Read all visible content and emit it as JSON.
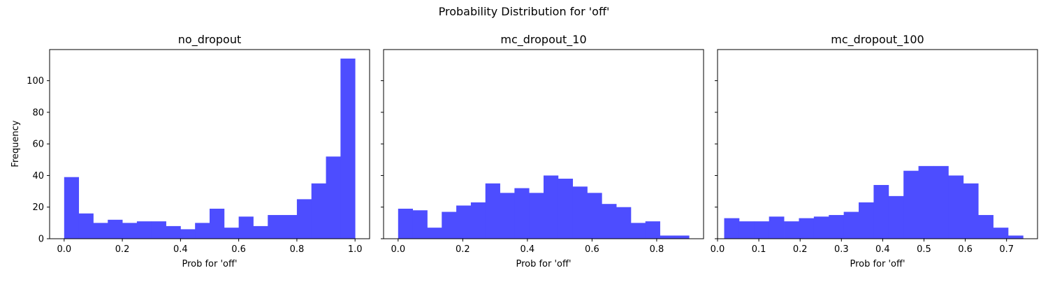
{
  "chart_data": {
    "type": "histogram",
    "suptitle": "Probability Distribution for 'off'",
    "bar_color": "#4d4dff",
    "sharey": true,
    "ylabel": "Frequency",
    "ylim": [
      0,
      119.7
    ],
    "yticks": [
      0,
      20,
      40,
      60,
      80,
      100
    ],
    "ytick_labels": [
      "0",
      "20",
      "40",
      "60",
      "80",
      "100"
    ],
    "panels": [
      {
        "title": "no_dropout",
        "xlabel": "Prob for 'off'",
        "xlim": [
          -0.05,
          1.05
        ],
        "xticks": [
          0,
          0.2,
          0.4,
          0.6,
          0.8,
          1.0
        ],
        "xtick_labels": [
          "0.0",
          "0.2",
          "0.4",
          "0.6",
          "0.8",
          "1.0"
        ],
        "bin_start": 0.0,
        "bin_end": 1.0,
        "counts": [
          39,
          16,
          10,
          12,
          10,
          11,
          11,
          8,
          6,
          10,
          19,
          7,
          14,
          8,
          15,
          15,
          25,
          35,
          52,
          114
        ]
      },
      {
        "title": "mc_dropout_10",
        "xlabel": "Prob for 'off'",
        "xlim": [
          -0.045,
          0.945
        ],
        "xticks": [
          0,
          0.2,
          0.4,
          0.6,
          0.8
        ],
        "xtick_labels": [
          "0.0",
          "0.2",
          "0.4",
          "0.6",
          "0.8"
        ],
        "bin_start": 0.0,
        "bin_end": 0.9,
        "counts": [
          19,
          18,
          7,
          17,
          21,
          23,
          35,
          29,
          32,
          29,
          40,
          38,
          33,
          29,
          22,
          20,
          10,
          11,
          2,
          2
        ]
      },
      {
        "title": "mc_dropout_100",
        "xlabel": "Prob for 'off'",
        "xlim": [
          -0.0,
          0.775
        ],
        "xticks": [
          0,
          0.1,
          0.2,
          0.3,
          0.4,
          0.5,
          0.6,
          0.7
        ],
        "xtick_labels": [
          "0.0",
          "0.1",
          "0.2",
          "0.3",
          "0.4",
          "0.5",
          "0.6",
          "0.7"
        ],
        "bin_start": 0.0161,
        "bin_end": 0.74,
        "counts": [
          13,
          11,
          11,
          14,
          11,
          13,
          14,
          15,
          17,
          23,
          34,
          27,
          43,
          46,
          46,
          40,
          35,
          15,
          7,
          2
        ]
      }
    ]
  }
}
